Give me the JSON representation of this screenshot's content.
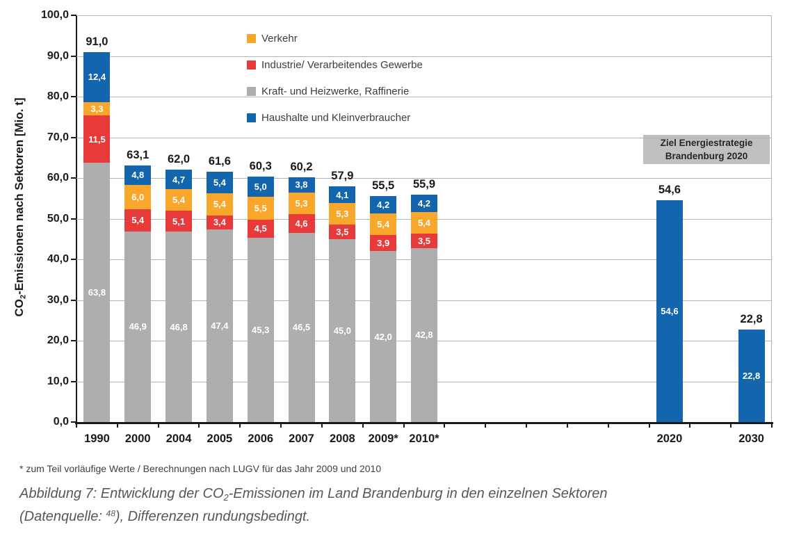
{
  "page": {
    "background": "#ffffff"
  },
  "axis": {
    "y_title_prefix": "CO",
    "y_title_sub": "2",
    "y_title_suffix": "-Emissionen nach Sektoren [Mio. t]"
  },
  "annotation": {
    "line1": "Ziel Energiestrategie",
    "line2": "Brandenburg 2020",
    "bg": "#c0c0c0"
  },
  "footnote": "* zum Teil vorläufige Werte / Berechnungen nach LUGV für das Jahr 2009 und 2010",
  "caption": {
    "line1_prefix": "Abbildung 7: Entwicklung der CO",
    "line1_sub": "2",
    "line1_suffix": "-Emissionen im Land Brandenburg in den einzelnen Sektoren",
    "line2_prefix": "(Datenquelle: ",
    "line2_sup": "48",
    "line2_suffix": "), Differenzen rundungsbedingt."
  },
  "chart_data": {
    "type": "bar",
    "stacked": true,
    "title": "",
    "xlabel": "",
    "ylabel": "CO2-Emissionen nach Sektoren [Mio. t]",
    "ylim": [
      0,
      100
    ],
    "ytick_step": 10,
    "y_tick_labels": [
      "0,0",
      "10,0",
      "20,0",
      "30,0",
      "40,0",
      "50,0",
      "60,0",
      "70,0",
      "80,0",
      "90,0",
      "100,0"
    ],
    "decimal_separator": ",",
    "grid": "horizontal",
    "legend_position": "inside-top-left",
    "gridline_color": "#b3b3b3",
    "total_slots": 17,
    "series": {
      "verkehr": {
        "label": "Verkehr",
        "color": "#f9a72b"
      },
      "industrie": {
        "label": "Industrie/ Verarbeitendes Gewerbe",
        "color": "#e8393b"
      },
      "kraft": {
        "label": "Kraft- und Heizwerke, Raffinerie",
        "color": "#aeaeae"
      },
      "haushalte": {
        "label": "Haushalte und Kleinverbraucher",
        "color": "#1365ae"
      }
    },
    "legend_order": [
      "verkehr",
      "industrie",
      "kraft",
      "haushalte"
    ],
    "stack_order": [
      "kraft",
      "industrie",
      "verkehr",
      "haushalte"
    ],
    "bars": [
      {
        "category": "1990",
        "slot": 0,
        "total": 91.0,
        "values": {
          "kraft": 63.8,
          "industrie": 11.5,
          "verkehr": 3.3,
          "haushalte": 12.4
        }
      },
      {
        "category": "2000",
        "slot": 1,
        "total": 63.1,
        "values": {
          "kraft": 46.9,
          "industrie": 5.4,
          "verkehr": 6.0,
          "haushalte": 4.8
        }
      },
      {
        "category": "2004",
        "slot": 2,
        "total": 62.0,
        "values": {
          "kraft": 46.8,
          "industrie": 5.1,
          "verkehr": 5.4,
          "haushalte": 4.7
        }
      },
      {
        "category": "2005",
        "slot": 3,
        "total": 61.6,
        "values": {
          "kraft": 47.4,
          "industrie": 3.4,
          "verkehr": 5.4,
          "haushalte": 5.4
        }
      },
      {
        "category": "2006",
        "slot": 4,
        "total": 60.3,
        "values": {
          "kraft": 45.3,
          "industrie": 4.5,
          "verkehr": 5.5,
          "haushalte": 5.0
        }
      },
      {
        "category": "2007",
        "slot": 5,
        "total": 60.2,
        "values": {
          "kraft": 46.5,
          "industrie": 4.6,
          "verkehr": 5.3,
          "haushalte": 3.8
        }
      },
      {
        "category": "2008",
        "slot": 6,
        "total": 57.9,
        "values": {
          "kraft": 45.0,
          "industrie": 3.5,
          "verkehr": 5.3,
          "haushalte": 4.1
        }
      },
      {
        "category": "2009*",
        "slot": 7,
        "total": 55.5,
        "values": {
          "kraft": 42.0,
          "industrie": 3.9,
          "verkehr": 5.4,
          "haushalte": 4.2
        }
      },
      {
        "category": "2010*",
        "slot": 8,
        "total": 55.9,
        "values": {
          "kraft": 42.8,
          "industrie": 3.5,
          "verkehr": 5.4,
          "haushalte": 4.2
        }
      },
      {
        "category": "2020",
        "slot": 14,
        "total": 54.6,
        "values": {
          "haushalte": 54.6
        }
      },
      {
        "category": "2030",
        "slot": 16,
        "total": 22.8,
        "values": {
          "haushalte": 22.8
        }
      }
    ]
  }
}
